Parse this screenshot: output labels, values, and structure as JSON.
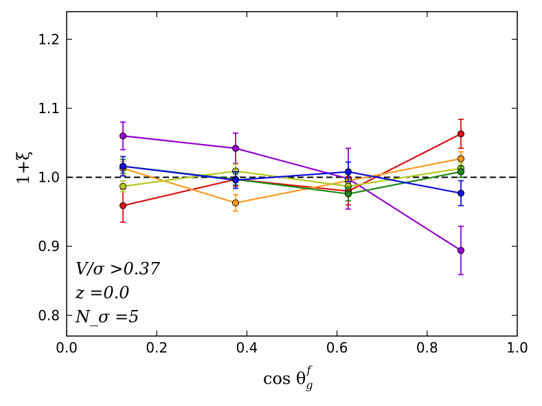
{
  "chart_data": {
    "type": "line",
    "xlabel": "cos θ_g^f",
    "xlabel_main": "cos θ",
    "xlabel_sub": "g",
    "xlabel_sup": "f",
    "ylabel": "1+ξ",
    "xlim": [
      0.0,
      1.0
    ],
    "ylim": [
      0.77,
      1.24
    ],
    "xticks": [
      0.0,
      0.2,
      0.4,
      0.6,
      0.8,
      1.0
    ],
    "xtick_labels": [
      "0.0",
      "0.2",
      "0.4",
      "0.6",
      "0.8",
      "1.0"
    ],
    "yticks": [
      0.8,
      0.9,
      1.0,
      1.1,
      1.2
    ],
    "ytick_labels": [
      "0.8",
      "0.9",
      "1.0",
      "1.1",
      "1.2"
    ],
    "reference_line": {
      "y": 1.0,
      "style": "dashed",
      "color": "#000000"
    },
    "annotations": [
      "V/σ >0.37",
      "z =0.0",
      "N_σ =5"
    ],
    "x": [
      0.125,
      0.375,
      0.625,
      0.875
    ],
    "series": [
      {
        "name": "purple",
        "color": "#9400d3",
        "values": [
          1.06,
          1.042,
          0.998,
          0.894
        ],
        "errors": [
          0.02,
          0.022,
          0.044,
          0.035
        ]
      },
      {
        "name": "red",
        "color": "#e01010",
        "values": [
          0.959,
          0.997,
          0.98,
          1.063
        ],
        "errors": [
          0.024,
          0.01,
          0.02,
          0.021
        ]
      },
      {
        "name": "orange",
        "color": "#ff9a1e",
        "values": [
          1.013,
          0.963,
          0.995,
          1.027
        ],
        "errors": [
          0.01,
          0.012,
          0.01,
          0.01
        ]
      },
      {
        "name": "yellow-green",
        "color": "#b5c81e",
        "values": [
          0.987,
          1.009,
          0.987,
          1.013
        ],
        "errors": [
          0.008,
          0.01,
          0.008,
          0.008
        ]
      },
      {
        "name": "green",
        "color": "#1a8a10",
        "values": [
          1.016,
          0.997,
          0.976,
          1.008
        ],
        "errors": [
          0.01,
          0.008,
          0.01,
          0.008
        ]
      },
      {
        "name": "blue",
        "color": "#1010e0",
        "values": [
          1.016,
          0.996,
          1.008,
          0.977
        ],
        "errors": [
          0.014,
          0.012,
          0.014,
          0.018
        ]
      }
    ]
  }
}
